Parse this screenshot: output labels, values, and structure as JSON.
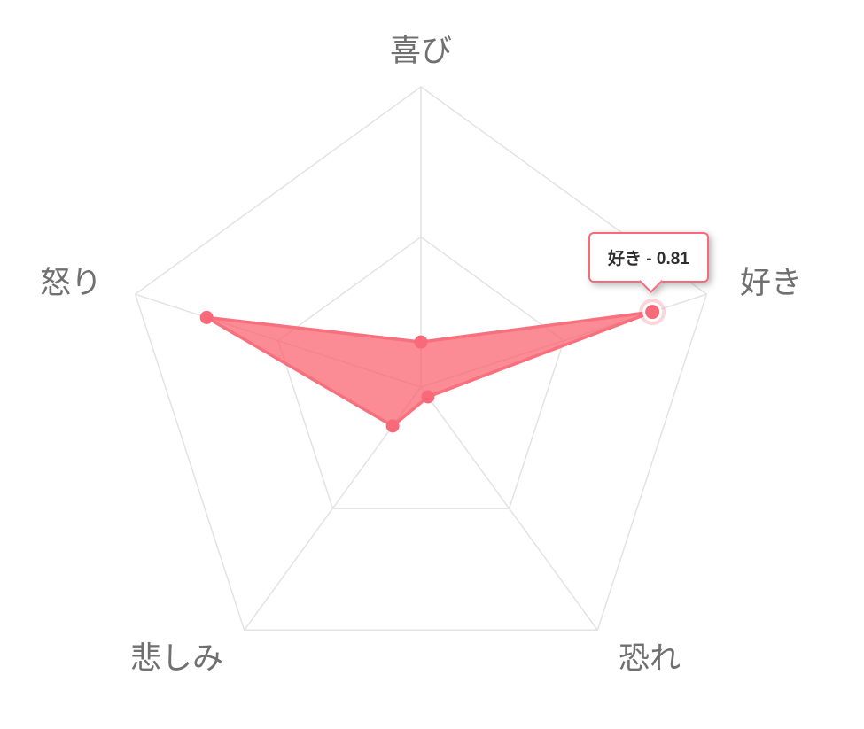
{
  "chart_data": {
    "type": "radar",
    "categories": [
      "喜び",
      "好き",
      "恐れ",
      "悲しみ",
      "怒り"
    ],
    "values": [
      0.15,
      0.81,
      0.04,
      0.16,
      0.75
    ],
    "ylim": [
      0,
      1
    ],
    "grid_rings": [
      0.5,
      1
    ],
    "grid": true,
    "legend": false,
    "active_point": {
      "index": 1,
      "category": "好き",
      "value": 0.81
    }
  },
  "tooltip": {
    "label": "好き",
    "separator": " - ",
    "value": "0.81"
  },
  "colors": {
    "accent": "#f8697a",
    "series_border": "#f8707e",
    "series_fill": "rgba(249, 96, 110, 0.72)",
    "halo": "rgba(248, 105, 122, 0.28)",
    "halo_inner": "#ffffff",
    "grid": "#e3e3e3",
    "axis_label": "#707070",
    "tooltip_border": "#f8697a",
    "tooltip_bg": "#ffffff",
    "tooltip_text": "#2e2e2e"
  }
}
